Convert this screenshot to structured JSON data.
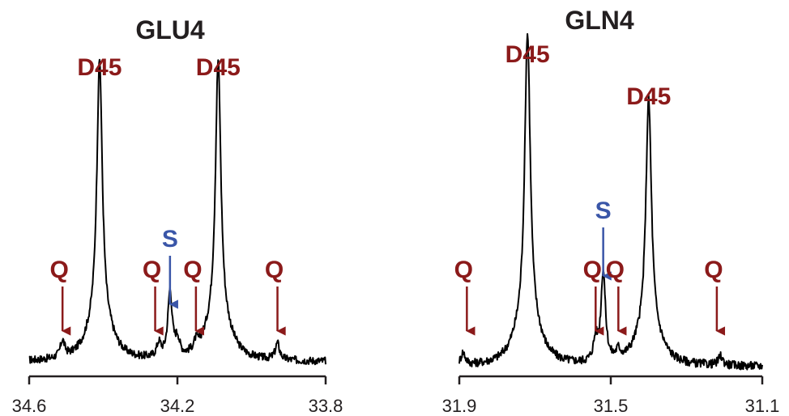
{
  "colors": {
    "trace": "#000000",
    "axis": "#231f20",
    "peak_label": "#8b1a1a",
    "q_arrow": "#8b1a1a",
    "s_arrow": "#3a56a8"
  },
  "chart_data": [
    {
      "type": "line",
      "title": "GLU4",
      "xlim": [
        34.6,
        33.8
      ],
      "x_reversed": true,
      "xticks": [
        "34.6",
        "34.2",
        "33.8"
      ],
      "xtick_values": [
        34.6,
        34.2,
        33.8
      ],
      "ylabel": "",
      "grid": false,
      "peaks": [
        {
          "label": "D45",
          "x": 34.41,
          "height": 1.0
        },
        {
          "label": "D45",
          "x": 34.09,
          "height": 1.0
        }
      ],
      "small_peaks": [
        {
          "x": 34.51,
          "height": 0.06
        },
        {
          "x": 34.25,
          "height": 0.05
        },
        {
          "x": 34.22,
          "height": 0.24
        },
        {
          "x": 34.2,
          "height": 0.06
        },
        {
          "x": 34.15,
          "height": 0.03
        },
        {
          "x": 33.93,
          "height": 0.06
        }
      ],
      "annotations": [
        {
          "label": "Q",
          "kind": "Q",
          "x": 34.51
        },
        {
          "label": "Q",
          "kind": "Q",
          "x": 34.26
        },
        {
          "label": "S",
          "kind": "S",
          "x": 34.22
        },
        {
          "label": "Q",
          "kind": "Q",
          "x": 34.15
        },
        {
          "label": "Q",
          "kind": "Q",
          "x": 33.93
        }
      ]
    },
    {
      "type": "line",
      "title": "GLN4",
      "xlim": [
        31.9,
        31.1
      ],
      "x_reversed": true,
      "xticks": [
        "31.9",
        "31.5",
        "31.1"
      ],
      "xtick_values": [
        31.9,
        31.5,
        31.1
      ],
      "ylabel": "",
      "grid": false,
      "peaks": [
        {
          "label": "D45",
          "x": 31.72,
          "height": 1.0
        },
        {
          "label": "D45",
          "x": 31.4,
          "height": 0.8
        }
      ],
      "small_peaks": [
        {
          "x": 31.89,
          "height": 0.04
        },
        {
          "x": 31.54,
          "height": 0.07
        },
        {
          "x": 31.52,
          "height": 0.3
        },
        {
          "x": 31.48,
          "height": 0.03
        },
        {
          "x": 31.21,
          "height": 0.03
        }
      ],
      "annotations": [
        {
          "label": "Q",
          "kind": "Q",
          "x": 31.88
        },
        {
          "label": "Q",
          "kind": "Q",
          "x": 31.54
        },
        {
          "label": "S",
          "kind": "S",
          "x": 31.52
        },
        {
          "label": "Q",
          "kind": "Q",
          "x": 31.48
        },
        {
          "label": "Q",
          "kind": "Q",
          "x": 31.22
        }
      ]
    }
  ]
}
